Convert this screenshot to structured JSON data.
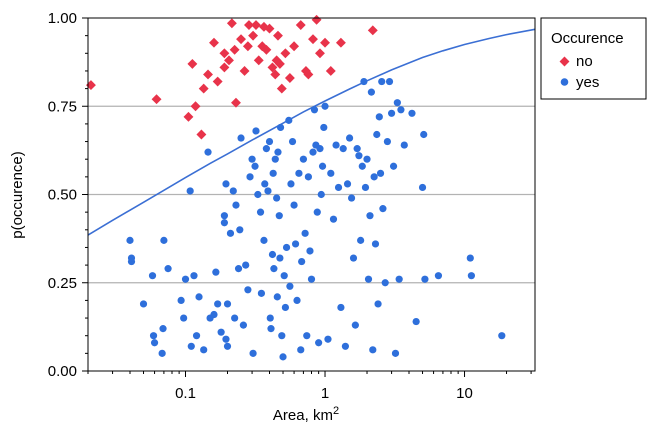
{
  "chart_data": {
    "type": "scatter",
    "x_scale": "log",
    "xlim": [
      0.02,
      32
    ],
    "ylim": [
      0,
      1
    ],
    "xlabel": "Area, km",
    "xlabel_superscript": "2",
    "ylabel": "p(occurence)",
    "x_ticks": [
      {
        "value": 0.1,
        "label": "0.1"
      },
      {
        "value": 1,
        "label": "1"
      },
      {
        "value": 10,
        "label": "10"
      }
    ],
    "y_ticks": [
      {
        "value": 0,
        "label": "0.00"
      },
      {
        "value": 0.25,
        "label": "0.25"
      },
      {
        "value": 0.5,
        "label": "0.50"
      },
      {
        "value": 0.75,
        "label": "0.75"
      },
      {
        "value": 1,
        "label": "1.00"
      }
    ],
    "grid": "horizontal",
    "legend": {
      "title": "Occurence",
      "position": "outside-right"
    },
    "colors": {
      "no": "#e8334a",
      "yes": "#2e6fdb",
      "curve": "#3b6fd4",
      "grid": "#b3b3b3"
    },
    "curve": {
      "name": "",
      "x": [
        0.02,
        0.03,
        0.05,
        0.07,
        0.1,
        0.15,
        0.2,
        0.3,
        0.5,
        0.7,
        1,
        1.5,
        2,
        3,
        5,
        7,
        10,
        15,
        20,
        32
      ],
      "y": [
        0.385,
        0.427,
        0.478,
        0.512,
        0.548,
        0.588,
        0.615,
        0.654,
        0.702,
        0.734,
        0.765,
        0.799,
        0.822,
        0.853,
        0.888,
        0.907,
        0.925,
        0.942,
        0.953,
        0.968
      ]
    },
    "series": [
      {
        "name": "no",
        "marker": "diamond",
        "points": [
          [
            0.021,
            0.81
          ],
          [
            0.062,
            0.77
          ],
          [
            0.105,
            0.72
          ],
          [
            0.112,
            0.87
          ],
          [
            0.118,
            0.75
          ],
          [
            0.13,
            0.67
          ],
          [
            0.135,
            0.8
          ],
          [
            0.145,
            0.84
          ],
          [
            0.16,
            0.93
          ],
          [
            0.17,
            0.82
          ],
          [
            0.19,
            0.86
          ],
          [
            0.19,
            0.9
          ],
          [
            0.205,
            0.88
          ],
          [
            0.215,
            0.985
          ],
          [
            0.225,
            0.91
          ],
          [
            0.23,
            0.76
          ],
          [
            0.25,
            0.94
          ],
          [
            0.265,
            0.85
          ],
          [
            0.28,
            0.92
          ],
          [
            0.285,
            0.98
          ],
          [
            0.305,
            0.95
          ],
          [
            0.32,
            0.98
          ],
          [
            0.335,
            0.88
          ],
          [
            0.355,
            0.92
          ],
          [
            0.365,
            0.975
          ],
          [
            0.38,
            0.91
          ],
          [
            0.4,
            0.97
          ],
          [
            0.42,
            0.86
          ],
          [
            0.44,
            0.84
          ],
          [
            0.45,
            0.88
          ],
          [
            0.46,
            0.95
          ],
          [
            0.475,
            0.87
          ],
          [
            0.49,
            0.8
          ],
          [
            0.52,
            0.9
          ],
          [
            0.56,
            0.83
          ],
          [
            0.6,
            0.92
          ],
          [
            0.67,
            0.98
          ],
          [
            0.73,
            0.85
          ],
          [
            0.76,
            0.84
          ],
          [
            0.82,
            0.94
          ],
          [
            0.87,
            0.995
          ],
          [
            0.92,
            0.9
          ],
          [
            1.0,
            0.93
          ],
          [
            1.1,
            0.85
          ],
          [
            1.3,
            0.93
          ],
          [
            2.2,
            0.965
          ]
        ]
      },
      {
        "name": "yes",
        "marker": "circle",
        "points": [
          [
            0.04,
            0.37
          ],
          [
            0.041,
            0.31
          ],
          [
            0.041,
            0.32
          ],
          [
            0.05,
            0.19
          ],
          [
            0.058,
            0.27
          ],
          [
            0.059,
            0.1
          ],
          [
            0.06,
            0.08
          ],
          [
            0.068,
            0.05
          ],
          [
            0.069,
            0.12
          ],
          [
            0.07,
            0.37
          ],
          [
            0.075,
            0.29
          ],
          [
            0.093,
            0.2
          ],
          [
            0.097,
            0.15
          ],
          [
            0.1,
            0.26
          ],
          [
            0.108,
            0.51
          ],
          [
            0.11,
            0.07
          ],
          [
            0.115,
            0.27
          ],
          [
            0.12,
            0.1
          ],
          [
            0.125,
            0.21
          ],
          [
            0.135,
            0.06
          ],
          [
            0.145,
            0.62
          ],
          [
            0.15,
            0.15
          ],
          [
            0.16,
            0.16
          ],
          [
            0.165,
            0.28
          ],
          [
            0.17,
            0.19
          ],
          [
            0.18,
            0.11
          ],
          [
            0.19,
            0.44
          ],
          [
            0.19,
            0.42
          ],
          [
            0.195,
            0.09
          ],
          [
            0.195,
            0.53
          ],
          [
            0.2,
            0.19
          ],
          [
            0.2,
            0.07
          ],
          [
            0.21,
            0.39
          ],
          [
            0.22,
            0.51
          ],
          [
            0.225,
            0.15
          ],
          [
            0.23,
            0.47
          ],
          [
            0.24,
            0.29
          ],
          [
            0.245,
            0.4
          ],
          [
            0.25,
            0.66
          ],
          [
            0.26,
            0.13
          ],
          [
            0.27,
            0.3
          ],
          [
            0.28,
            0.23
          ],
          [
            0.29,
            0.55
          ],
          [
            0.3,
            0.6
          ],
          [
            0.305,
            0.05
          ],
          [
            0.315,
            0.58
          ],
          [
            0.32,
            0.68
          ],
          [
            0.33,
            0.5
          ],
          [
            0.345,
            0.45
          ],
          [
            0.35,
            0.22
          ],
          [
            0.365,
            0.37
          ],
          [
            0.37,
            0.53
          ],
          [
            0.38,
            0.63
          ],
          [
            0.39,
            0.51
          ],
          [
            0.4,
            0.65
          ],
          [
            0.405,
            0.15
          ],
          [
            0.41,
            0.12
          ],
          [
            0.42,
            0.33
          ],
          [
            0.425,
            0.56
          ],
          [
            0.43,
            0.29
          ],
          [
            0.44,
            0.6
          ],
          [
            0.45,
            0.49
          ],
          [
            0.455,
            0.21
          ],
          [
            0.46,
            0.62
          ],
          [
            0.47,
            0.44
          ],
          [
            0.475,
            0.32
          ],
          [
            0.48,
            0.69
          ],
          [
            0.49,
            0.1
          ],
          [
            0.5,
            0.04
          ],
          [
            0.51,
            0.27
          ],
          [
            0.52,
            0.18
          ],
          [
            0.53,
            0.35
          ],
          [
            0.55,
            0.71
          ],
          [
            0.56,
            0.24
          ],
          [
            0.57,
            0.53
          ],
          [
            0.585,
            0.65
          ],
          [
            0.6,
            0.47
          ],
          [
            0.615,
            0.36
          ],
          [
            0.63,
            0.2
          ],
          [
            0.65,
            0.56
          ],
          [
            0.67,
            0.06
          ],
          [
            0.68,
            0.31
          ],
          [
            0.7,
            0.6
          ],
          [
            0.72,
            0.39
          ],
          [
            0.74,
            0.1
          ],
          [
            0.76,
            0.55
          ],
          [
            0.78,
            0.34
          ],
          [
            0.8,
            0.26
          ],
          [
            0.82,
            0.62
          ],
          [
            0.84,
            0.74
          ],
          [
            0.86,
            0.64
          ],
          [
            0.88,
            0.45
          ],
          [
            0.9,
            0.08
          ],
          [
            0.92,
            0.63
          ],
          [
            0.94,
            0.5
          ],
          [
            0.96,
            0.58
          ],
          [
            0.98,
            0.69
          ],
          [
            1.0,
            0.75
          ],
          [
            1.05,
            0.09
          ],
          [
            1.1,
            0.56
          ],
          [
            1.15,
            0.43
          ],
          [
            1.2,
            0.64
          ],
          [
            1.25,
            0.52
          ],
          [
            1.3,
            0.18
          ],
          [
            1.35,
            0.63
          ],
          [
            1.4,
            0.07
          ],
          [
            1.45,
            0.53
          ],
          [
            1.5,
            0.66
          ],
          [
            1.55,
            0.49
          ],
          [
            1.6,
            0.32
          ],
          [
            1.65,
            0.13
          ],
          [
            1.7,
            0.63
          ],
          [
            1.75,
            0.61
          ],
          [
            1.8,
            0.37
          ],
          [
            1.85,
            0.58
          ],
          [
            1.9,
            0.82
          ],
          [
            1.95,
            0.52
          ],
          [
            2.0,
            0.6
          ],
          [
            2.05,
            0.26
          ],
          [
            2.1,
            0.44
          ],
          [
            2.15,
            0.79
          ],
          [
            2.2,
            0.06
          ],
          [
            2.25,
            0.55
          ],
          [
            2.3,
            0.36
          ],
          [
            2.35,
            0.67
          ],
          [
            2.4,
            0.19
          ],
          [
            2.45,
            0.72
          ],
          [
            2.5,
            0.56
          ],
          [
            2.55,
            0.82
          ],
          [
            2.6,
            0.46
          ],
          [
            2.7,
            0.25
          ],
          [
            2.8,
            0.65
          ],
          [
            2.9,
            0.82
          ],
          [
            3.0,
            0.73
          ],
          [
            3.1,
            0.58
          ],
          [
            3.2,
            0.05
          ],
          [
            3.3,
            0.76
          ],
          [
            3.4,
            0.26
          ],
          [
            3.5,
            0.74
          ],
          [
            3.7,
            0.64
          ],
          [
            4.2,
            0.73
          ],
          [
            4.5,
            0.14
          ],
          [
            5.0,
            0.52
          ],
          [
            5.1,
            0.67
          ],
          [
            5.2,
            0.26
          ],
          [
            6.5,
            0.27
          ],
          [
            11,
            0.32
          ],
          [
            11.2,
            0.27
          ],
          [
            18.5,
            0.1
          ]
        ]
      }
    ]
  }
}
